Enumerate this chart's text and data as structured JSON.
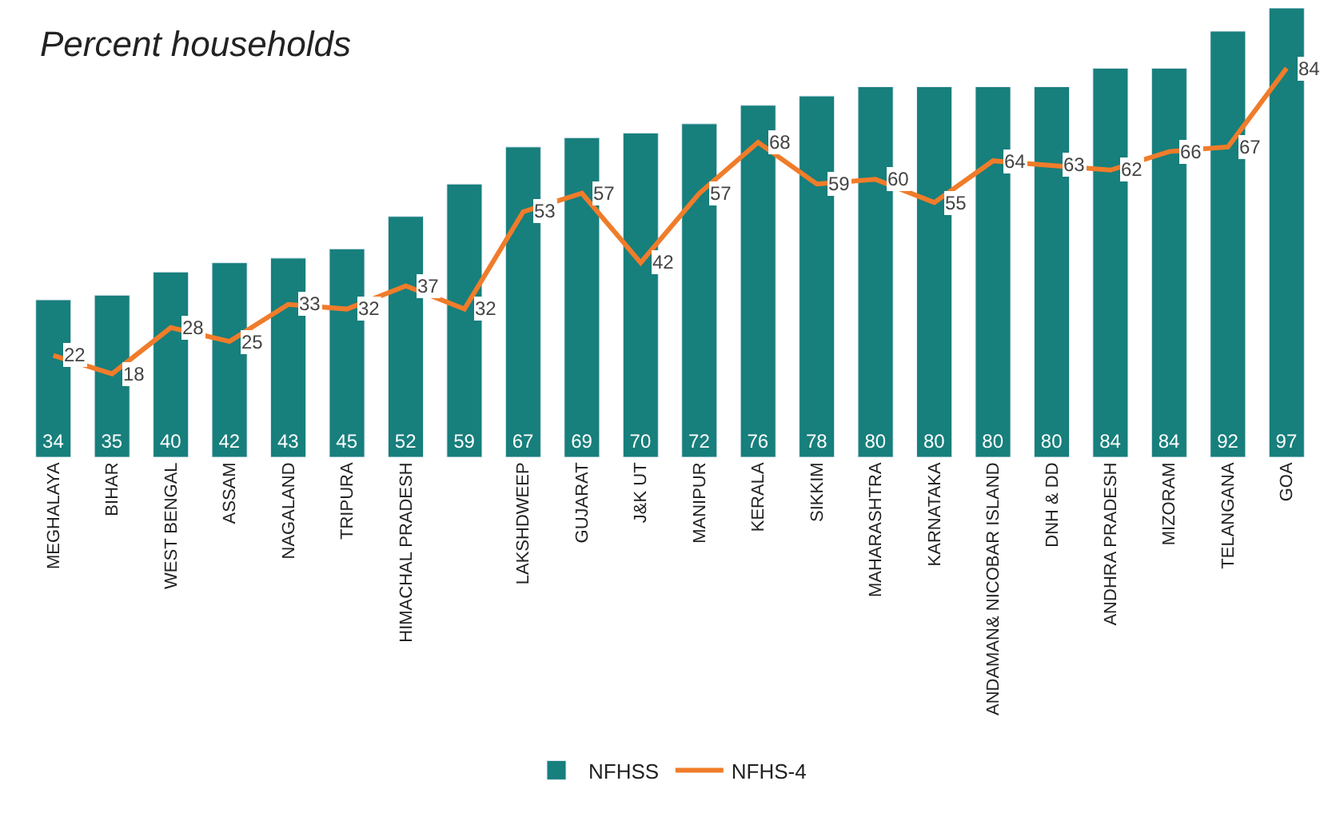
{
  "chart_data": {
    "type": "bar",
    "title": "Percent households",
    "categories": [
      "MEGHALAYA",
      "BIHAR",
      "WEST BENGAL",
      "ASSAM",
      "NAGALAND",
      "TRIPURA",
      "HIMACHAL PRADESH",
      null,
      "LAKSHDWEEP",
      "GUJARAT",
      "J&K UT",
      "MANIPUR",
      "KERALA",
      "SIKKIM",
      "MAHARASHTRA",
      "KARNATAKA",
      "ANDAMAN& NICOBAR ISLAND",
      "DNH & DD",
      "ANDHRA PRADESH",
      "MIZORAM",
      "TELANGANA",
      "GOA"
    ],
    "series": [
      {
        "name": "NFHSS",
        "color": "#177f7c",
        "values": [
          34,
          35,
          40,
          42,
          43,
          45,
          52,
          59,
          67,
          69,
          70,
          72,
          76,
          78,
          80,
          80,
          80,
          80,
          84,
          84,
          92,
          97
        ]
      },
      {
        "name": "NFHS-4",
        "type": "line",
        "color": "#f07c2a",
        "values": [
          22,
          18,
          28,
          25,
          33,
          32,
          37,
          32,
          53,
          57,
          42,
          57,
          68,
          59,
          60,
          55,
          64,
          63,
          62,
          66,
          67,
          84
        ]
      }
    ],
    "data_labels": true,
    "legend": "bottom"
  }
}
